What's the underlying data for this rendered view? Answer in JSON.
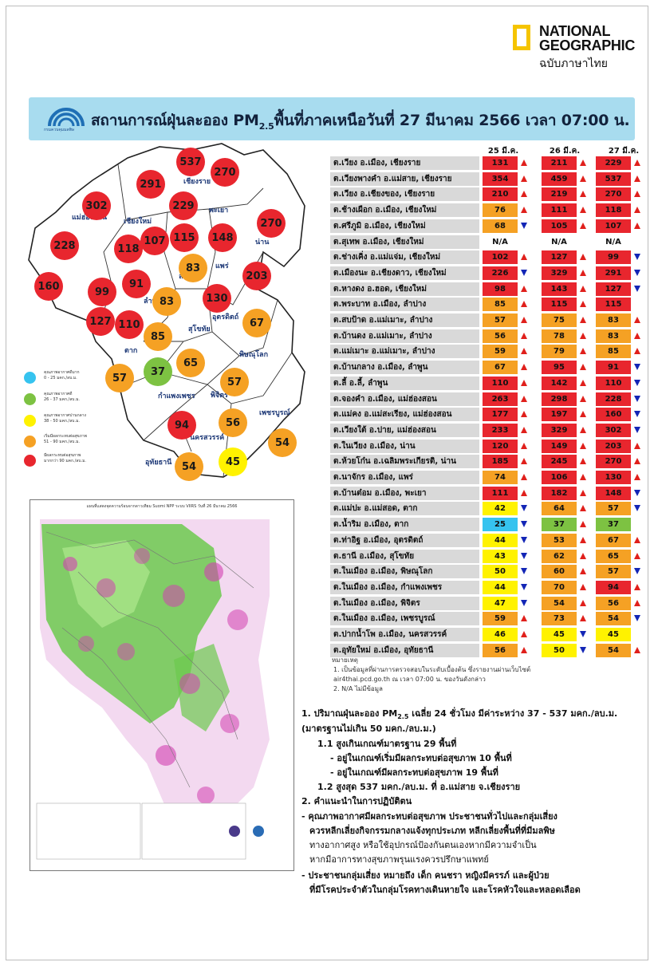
{
  "brand": {
    "line1": "NATIONAL",
    "line2": "GEOGRAPHIC",
    "line3": "ฉบับภาษาไทย"
  },
  "banner": {
    "logo_text": "กรมควบคุมมลพิษ",
    "title_main": "สถานการณ์ฝุ่นละออง PM",
    "title_sub": "2.5",
    "title_rest": "พื้นที่ภาคเหนือวันที่ 27 มีนาคม 2566 เวลา 07:00 น."
  },
  "colors": {
    "red": "#e8262e",
    "orange": "#f5a124",
    "yellow": "#fff200",
    "green": "#7dc242",
    "blue": "#36c3ef",
    "banner": "#a8dcef"
  },
  "legend": [
    {
      "color": "#36c3ef",
      "l1": "คุณภาพอากาศดีมาก",
      "l2": "0 - 25 มคก./ลบ.ม."
    },
    {
      "color": "#7dc242",
      "l1": "คุณภาพอากาศดี",
      "l2": "26 - 37 มคก./ลบ.ม."
    },
    {
      "color": "#fff200",
      "l1": "คุณภาพอากาศปานกลาง",
      "l2": "38 - 50 มคก./ลบ.ม."
    },
    {
      "color": "#f5a124",
      "l1": "เริ่มมีผลกระทบต่อสุขภาพ",
      "l2": "51 - 90 มคก./ลบ.ม."
    },
    {
      "color": "#e8262e",
      "l1": "มีผลกระทบต่อสุขภาพ",
      "l2": "มากกว่า 90 มคก./ลบ.ม."
    }
  ],
  "provinces": [
    {
      "name": "เชียงราย"
    },
    {
      "name": "แม่ฮ่องสอน"
    },
    {
      "name": "เชียงใหม่"
    },
    {
      "name": "พะเยา"
    },
    {
      "name": "น่าน"
    },
    {
      "name": "ลำปาง"
    },
    {
      "name": "แพร่"
    },
    {
      "name": "ลำพูน"
    },
    {
      "name": "สุโขทัย"
    },
    {
      "name": "อุตรดิตถ์"
    },
    {
      "name": "ตาก"
    },
    {
      "name": "พิษณุโลก"
    },
    {
      "name": "กำแพงเพชร"
    },
    {
      "name": "พิจิตร"
    },
    {
      "name": "เพชรบูรณ์"
    },
    {
      "name": "นครสวรรค์"
    },
    {
      "name": "อุทัยธานี"
    }
  ],
  "map_circles": [
    {
      "value": 537,
      "color": "#e8262e",
      "label": "ต.เวียงพางคำ อ.แม่สาย"
    },
    {
      "value": 270,
      "color": "#e8262e",
      "label": "ต.เวียง อ.เชียงของ"
    },
    {
      "value": 291,
      "color": "#e8262e",
      "label": "ต.เมืองนะ อ.เชียงดาว"
    },
    {
      "value": 229,
      "color": "#e8262e",
      "label": "ต.เวียง อ.เมือง"
    },
    {
      "value": 302,
      "color": "#e8262e",
      "label": "ต.เวียงใต้ อ.ปาย"
    },
    {
      "value": 270,
      "color": "#e8262e",
      "label": "ต.ห้วยโก๋น อ.เฉลิมพระเกียรติ"
    },
    {
      "value": 228,
      "color": "#e8262e",
      "label": "ต.จองคำ อ.เมือง"
    },
    {
      "value": 118,
      "color": "#e8262e",
      "label": "ต.ช้างเผือก อ.เมือง"
    },
    {
      "value": 107,
      "color": "#e8262e",
      "label": "ต.ศรีภูมิ อ.เมือง"
    },
    {
      "value": 115,
      "color": "#e8262e",
      "label": "ต.พระบาท อ.เมือง"
    },
    {
      "value": 148,
      "color": "#e8262e",
      "label": "ต.บ้านต๋อม อ.เมือง"
    },
    {
      "value": 83,
      "color": "#f5a124",
      "label": "ต.บ้านดง อ.แม่เมาะ"
    },
    {
      "value": 203,
      "color": "#e8262e",
      "label": "ต.ในเวียง อ.เมือง"
    },
    {
      "value": 160,
      "color": "#e8262e",
      "label": "ต.แม่คง อ.แม่สะเรียง"
    },
    {
      "value": 99,
      "color": "#e8262e",
      "label": "ต.ช่างเคิ่ง อ.แม่แจ่ม"
    },
    {
      "value": 91,
      "color": "#e8262e",
      "label": "ต.บ้านกลาง อ.เมือง"
    },
    {
      "value": 83,
      "color": "#f5a124",
      "label": "ต.สบป้าด อ.แม่เมาะ"
    },
    {
      "value": 130,
      "color": "#e8262e",
      "label": "ต.นาจักร อ.เมือง"
    },
    {
      "value": 127,
      "color": "#e8262e",
      "label": "ต.หางดง อ.ฮอด"
    },
    {
      "value": 110,
      "color": "#e8262e",
      "label": "ต.ลี้ อ.ลี้"
    },
    {
      "value": 85,
      "color": "#f5a124",
      "label": "ต.แม่เมาะ อ.แม่เมาะ"
    },
    {
      "value": 67,
      "color": "#f5a124",
      "label": "ต.ท่าอิฐ อ.เมือง"
    },
    {
      "value": 57,
      "color": "#f5a124",
      "label": "ต.แม่ปะ อ.แม่สอด"
    },
    {
      "value": 37,
      "color": "#7dc242",
      "label": "ต.น้ำริม อ.เมือง"
    },
    {
      "value": 65,
      "color": "#f5a124",
      "label": "ต.ธานี อ.เมือง"
    },
    {
      "value": 57,
      "color": "#f5a124",
      "label": "ต.ในเมือง อ.เมือง"
    },
    {
      "value": 94,
      "color": "#e8262e",
      "label": "ต.ในเมือง อ.เมือง"
    },
    {
      "value": 56,
      "color": "#f5a124",
      "label": "ต.ในเมือง อ.เมือง"
    },
    {
      "value": 54,
      "color": "#f5a124",
      "label": "ต.ในเมือง อ.เมือง"
    },
    {
      "value": 54,
      "color": "#f5a124",
      "label": "ต.อุทัยใหม่ อ.เมือง"
    },
    {
      "value": 45,
      "color": "#fff200",
      "label": "ต.ปากน้ำโพ อ.เมือง"
    }
  ],
  "chart_data": {
    "type": "table",
    "title": "สถานการณ์ฝุ่นละออง PM2.5 พื้นที่ภาคเหนือวันที่ 27 มีนาคม 2566 เวลา 07:00 น.",
    "columns": [
      "25 มี.ค.",
      "26 มี.ค.",
      "27 มี.ค."
    ],
    "rows": [
      {
        "station": "ต.เวียง อ.เมือง, เชียงราย",
        "values": [
          "131",
          "211",
          "229"
        ],
        "colors": [
          "#e8262e",
          "#e8262e",
          "#e8262e"
        ],
        "trend": [
          "up",
          "up",
          "up"
        ]
      },
      {
        "station": "ต.เวียงพางคำ อ.แม่สาย, เชียงราย",
        "values": [
          "354",
          "459",
          "537"
        ],
        "colors": [
          "#e8262e",
          "#e8262e",
          "#e8262e"
        ],
        "trend": [
          "up",
          "up",
          "up"
        ]
      },
      {
        "station": "ต.เวียง อ.เชียงของ, เชียงราย",
        "values": [
          "210",
          "219",
          "270"
        ],
        "colors": [
          "#e8262e",
          "#e8262e",
          "#e8262e"
        ],
        "trend": [
          "up",
          "up",
          "up"
        ]
      },
      {
        "station": "ต.ช้างเผือก อ.เมือง, เชียงใหม่",
        "values": [
          "76",
          "111",
          "118"
        ],
        "colors": [
          "#f5a124",
          "#e8262e",
          "#e8262e"
        ],
        "trend": [
          "up",
          "up",
          "up"
        ]
      },
      {
        "station": "ต.ศรีภูมิ อ.เมือง, เชียงใหม่",
        "values": [
          "68",
          "105",
          "107"
        ],
        "colors": [
          "#f5a124",
          "#e8262e",
          "#e8262e"
        ],
        "trend": [
          "down",
          "up",
          "up"
        ]
      },
      {
        "station": "ต.สุเทพ อ.เมือง, เชียงใหม่",
        "values": [
          "N/A",
          "N/A",
          "N/A"
        ],
        "colors": [
          "none",
          "none",
          "none"
        ],
        "trend": [
          "",
          "",
          ""
        ]
      },
      {
        "station": "ต.ช่างเคิ่ง อ.แม่แจ่ม, เชียงใหม่",
        "values": [
          "102",
          "127",
          "99"
        ],
        "colors": [
          "#e8262e",
          "#e8262e",
          "#e8262e"
        ],
        "trend": [
          "up",
          "up",
          "down"
        ]
      },
      {
        "station": "ต.เมืองนะ อ.เชียงดาว, เชียงใหม่",
        "values": [
          "226",
          "329",
          "291"
        ],
        "colors": [
          "#e8262e",
          "#e8262e",
          "#e8262e"
        ],
        "trend": [
          "down",
          "up",
          "down"
        ]
      },
      {
        "station": "ต.หางดง อ.ฮอด, เชียงใหม่",
        "values": [
          "98",
          "143",
          "127"
        ],
        "colors": [
          "#e8262e",
          "#e8262e",
          "#e8262e"
        ],
        "trend": [
          "up",
          "up",
          "down"
        ]
      },
      {
        "station": "ต.พระบาท อ.เมือง, ลำปาง",
        "values": [
          "85",
          "115",
          "115"
        ],
        "colors": [
          "#f5a124",
          "#e8262e",
          "#e8262e"
        ],
        "trend": [
          "up",
          "up",
          ""
        ]
      },
      {
        "station": "ต.สบป้าด อ.แม่เมาะ, ลำปาง",
        "values": [
          "57",
          "75",
          "83"
        ],
        "colors": [
          "#f5a124",
          "#f5a124",
          "#f5a124"
        ],
        "trend": [
          "up",
          "up",
          "up"
        ]
      },
      {
        "station": "ต.บ้านดง อ.แม่เมาะ, ลำปาง",
        "values": [
          "56",
          "78",
          "83"
        ],
        "colors": [
          "#f5a124",
          "#f5a124",
          "#f5a124"
        ],
        "trend": [
          "up",
          "up",
          "up"
        ]
      },
      {
        "station": "ต.แม่เมาะ อ.แม่เมาะ, ลำปาง",
        "values": [
          "59",
          "79",
          "85"
        ],
        "colors": [
          "#f5a124",
          "#f5a124",
          "#f5a124"
        ],
        "trend": [
          "up",
          "up",
          "up"
        ]
      },
      {
        "station": "ต.บ้านกลาง อ.เมือง, ลำพูน",
        "values": [
          "67",
          "95",
          "91"
        ],
        "colors": [
          "#f5a124",
          "#e8262e",
          "#e8262e"
        ],
        "trend": [
          "up",
          "up",
          "down"
        ]
      },
      {
        "station": "ต.ลี้ อ.ลี้, ลำพูน",
        "values": [
          "110",
          "142",
          "110"
        ],
        "colors": [
          "#e8262e",
          "#e8262e",
          "#e8262e"
        ],
        "trend": [
          "up",
          "up",
          "down"
        ]
      },
      {
        "station": "ต.จองคำ อ.เมือง, แม่ฮ่องสอน",
        "values": [
          "263",
          "298",
          "228"
        ],
        "colors": [
          "#e8262e",
          "#e8262e",
          "#e8262e"
        ],
        "trend": [
          "up",
          "up",
          "down"
        ]
      },
      {
        "station": "ต.แม่คง อ.แม่สะเรียง, แม่ฮ่องสอน",
        "values": [
          "177",
          "197",
          "160"
        ],
        "colors": [
          "#e8262e",
          "#e8262e",
          "#e8262e"
        ],
        "trend": [
          "up",
          "up",
          "down"
        ]
      },
      {
        "station": "ต.เวียงใต้ อ.ปาย, แม่ฮ่องสอน",
        "values": [
          "233",
          "329",
          "302"
        ],
        "colors": [
          "#e8262e",
          "#e8262e",
          "#e8262e"
        ],
        "trend": [
          "up",
          "up",
          "down"
        ]
      },
      {
        "station": "ต.ในเวียง อ.เมือง, น่าน",
        "values": [
          "120",
          "149",
          "203"
        ],
        "colors": [
          "#e8262e",
          "#e8262e",
          "#e8262e"
        ],
        "trend": [
          "up",
          "up",
          "up"
        ]
      },
      {
        "station": "ต.ห้วยโก๋น อ.เฉลิมพระเกียรติ, น่าน",
        "values": [
          "185",
          "245",
          "270"
        ],
        "colors": [
          "#e8262e",
          "#e8262e",
          "#e8262e"
        ],
        "trend": [
          "up",
          "up",
          "up"
        ]
      },
      {
        "station": "ต.นาจักร อ.เมือง, แพร่",
        "values": [
          "74",
          "106",
          "130"
        ],
        "colors": [
          "#f5a124",
          "#e8262e",
          "#e8262e"
        ],
        "trend": [
          "up",
          "up",
          "up"
        ]
      },
      {
        "station": "ต.บ้านต๋อม อ.เมือง, พะเยา",
        "values": [
          "111",
          "182",
          "148"
        ],
        "colors": [
          "#e8262e",
          "#e8262e",
          "#e8262e"
        ],
        "trend": [
          "up",
          "up",
          "down"
        ]
      },
      {
        "station": "ต.แม่ปะ อ.แม่สอด, ตาก",
        "values": [
          "42",
          "64",
          "57"
        ],
        "colors": [
          "#fff200",
          "#f5a124",
          "#f5a124"
        ],
        "trend": [
          "down",
          "up",
          "down"
        ]
      },
      {
        "station": "ต.น้ำริม อ.เมือง, ตาก",
        "values": [
          "25",
          "37",
          "37"
        ],
        "colors": [
          "#36c3ef",
          "#7dc242",
          "#7dc242"
        ],
        "trend": [
          "down",
          "up",
          ""
        ]
      },
      {
        "station": "ต.ท่าอิฐ อ.เมือง, อุตรดิตถ์",
        "values": [
          "44",
          "53",
          "67"
        ],
        "colors": [
          "#fff200",
          "#f5a124",
          "#f5a124"
        ],
        "trend": [
          "down",
          "up",
          "up"
        ]
      },
      {
        "station": "ต.ธานี อ.เมือง, สุโขทัย",
        "values": [
          "43",
          "62",
          "65"
        ],
        "colors": [
          "#fff200",
          "#f5a124",
          "#f5a124"
        ],
        "trend": [
          "down",
          "up",
          "up"
        ]
      },
      {
        "station": "ต.ในเมือง อ.เมือง, พิษณุโลก",
        "values": [
          "50",
          "60",
          "57"
        ],
        "colors": [
          "#fff200",
          "#f5a124",
          "#f5a124"
        ],
        "trend": [
          "down",
          "up",
          "down"
        ]
      },
      {
        "station": "ต.ในเมือง อ.เมือง, กำแพงเพชร",
        "values": [
          "44",
          "70",
          "94"
        ],
        "colors": [
          "#fff200",
          "#f5a124",
          "#e8262e"
        ],
        "trend": [
          "down",
          "up",
          "up"
        ]
      },
      {
        "station": "ต.ในเมือง อ.เมือง, พิจิตร",
        "values": [
          "47",
          "54",
          "56"
        ],
        "colors": [
          "#fff200",
          "#f5a124",
          "#f5a124"
        ],
        "trend": [
          "down",
          "up",
          "up"
        ]
      },
      {
        "station": "ต.ในเมือง อ.เมือง, เพชรบูรณ์",
        "values": [
          "59",
          "73",
          "54"
        ],
        "colors": [
          "#f5a124",
          "#f5a124",
          "#f5a124"
        ],
        "trend": [
          "up",
          "up",
          "down"
        ]
      },
      {
        "station": "ต.ปากน้ำโพ อ.เมือง, นครสวรรค์",
        "values": [
          "46",
          "45",
          "45"
        ],
        "colors": [
          "#fff200",
          "#fff200",
          "#fff200"
        ],
        "trend": [
          "up",
          "down",
          ""
        ]
      },
      {
        "station": "ต.อุทัยใหม่ อ.เมือง, อุทัยธานี",
        "values": [
          "56",
          "50",
          "54"
        ],
        "colors": [
          "#f5a124",
          "#fff200",
          "#f5a124"
        ],
        "trend": [
          "up",
          "down",
          "up"
        ]
      }
    ]
  },
  "notes": {
    "title": "หมายเหตุ",
    "n1": "1. เป็นข้อมูลที่ผ่านการตรวจสอบในระดับเบื้องต้น ซึ่งรายงานผ่านเว็บไซต์",
    "n1b": "air4thai.pcd.go.th ณ เวลา 07:00 น. ของวันดังกล่าว",
    "n2": "2. N/A ไม่มีข้อมูล"
  },
  "summary": {
    "s1a": "1. ปริมาณฝุ่นละออง PM",
    "s1sub": "2.5",
    "s1b": " เฉลี่ย 24 ชั่วโมง มีค่าระหว่าง 37 - 537 มคก./ลบ.ม.",
    "s1c": "(มาตรฐานไม่เกิน 50 มคก./ลบ.ม.)",
    "s11": "1.1 สูงเกินเกณฑ์มาตรฐาน 29 พื้นที่",
    "s11a": "- อยู่ในเกณฑ์เริ่มมีผลกระทบต่อสุขภาพ 10 พื้นที่",
    "s11b": "- อยู่ในเกณฑ์มีผลกระทบต่อสุขภาพ 19 พื้นที่",
    "s12": "1.2 สูงสุด 537 มคก./ลบ.ม. ที่ อ.แม่สาย จ.เชียงราย",
    "s2": "2. คำแนะนำในการปฏิบัติตน",
    "s2a1": "- คุณภาพอากาศมีผลกระทบต่อสุขภาพ ประชาชนทั่วไปและกลุ่มเสี่ยง",
    "s2a2": "ควรหลีกเลี่ยงกิจกรรมกลางแจ้งทุกประเภท หลีกเลี่ยงพื้นที่ที่มีมลพิษ",
    "s2a3": "ทางอากาศสูง หรือใช้อุปกรณ์ป้องกันตนเองหากมีความจำเป็น",
    "s2a4": "หากมีอาการทางสุขภาพรุนแรงควรปรึกษาแพทย์",
    "s2b1": "- ประชาชนกลุ่มเสี่ยง หมายถึง เด็ก คนชรา หญิงมีครรภ์ และผู้ป่วย",
    "s2b2": "ที่มีโรคประจำตัวในกลุ่มโรคทางเดินหายใจ และโรคหัวใจและหลอดเลือด"
  },
  "sat_map": {
    "title": "แผนที่แสดงจุดความร้อนจากดาวเทียม Suomi NPP ระบบ VIIRS วันที่ 26 มีนาคม 2566"
  }
}
